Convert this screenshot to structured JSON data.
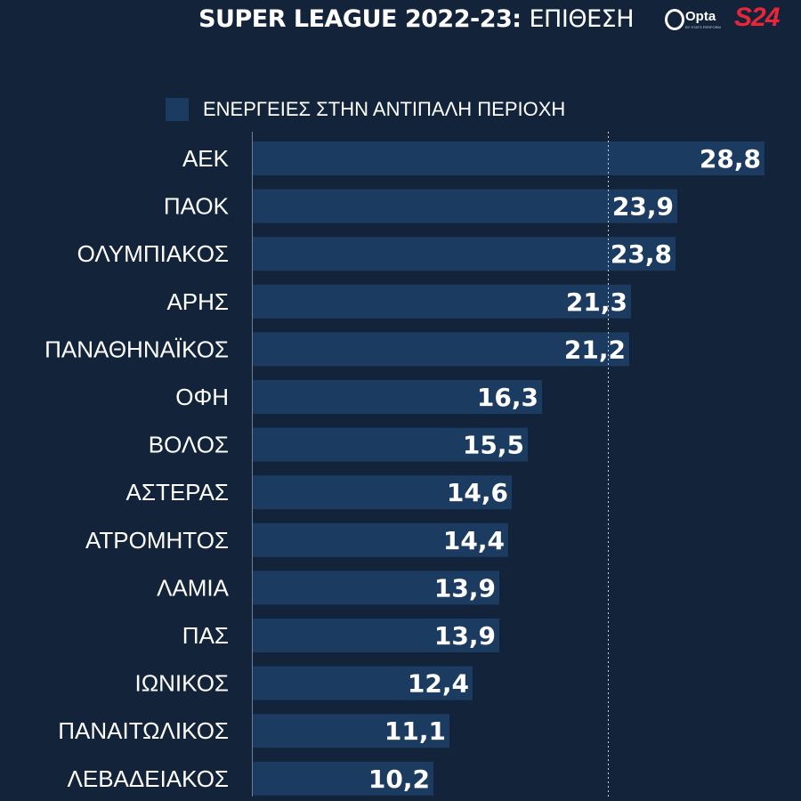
{
  "header": {
    "title_main": "SUPER LEAGUE 2022-23:",
    "title_sub": "ΕΠΙΘΕΣΗ"
  },
  "logos": {
    "opta_text": "Opta",
    "opta_sub": "BY STATS PERFORM",
    "brand_text": "S24",
    "brand_color": "#e8263a"
  },
  "colors": {
    "background": "#12233a",
    "bar": "#1b3b61",
    "text": "#ffffff"
  },
  "chart_data": {
    "type": "bar",
    "orientation": "horizontal",
    "title": "SUPER LEAGUE 2022-23: ΕΠΙΘΕΣΗ",
    "xlabel": "",
    "ylabel": "",
    "xlim": [
      0,
      30
    ],
    "grid": false,
    "reference_line": 20,
    "legend_position": "top",
    "categories": [
      "ΑΕΚ",
      "ΠΑΟΚ",
      "ΟΛΥΜΠΙΑΚΟΣ",
      "ΑΡΗΣ",
      "ΠΑΝΑΘΗΝΑΪΚΟΣ",
      "ΟΦΗ",
      "ΒΟΛΟΣ",
      "ΑΣΤΕΡΑΣ",
      "ΑΤΡΟΜΗΤΟΣ",
      "ΛΑΜΙΑ",
      "ΠΑΣ",
      "ΙΩΝΙΚΟΣ",
      "ΠΑΝΑΙΤΩΛΙΚΟΣ",
      "ΛΕΒΑΔΕΙΑΚΟΣ"
    ],
    "series": [
      {
        "name": "ΕΝΕΡΓΕΙΕΣ ΣΤΗΝ ΑΝΤΙΠΑΛΗ ΠΕΡΙΟΧΗ",
        "values": [
          28.8,
          23.9,
          23.8,
          21.3,
          21.2,
          16.3,
          15.5,
          14.6,
          14.4,
          13.9,
          13.9,
          12.4,
          11.1,
          10.2
        ],
        "labels": [
          "28,8",
          "23,9",
          "23,8",
          "21,3",
          "21,2",
          "16,3",
          "15,5",
          "14,6",
          "14,4",
          "13,9",
          "13,9",
          "12,4",
          "11,1",
          "10,2"
        ]
      }
    ]
  }
}
